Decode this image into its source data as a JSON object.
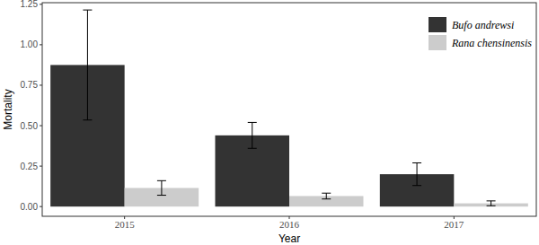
{
  "chart_data": {
    "type": "bar",
    "x_label": "Year",
    "y_label": "Mortality",
    "categories": [
      "2015",
      "2016",
      "2017"
    ],
    "series": [
      {
        "name": "Bufo andrewsi",
        "color": "#333333",
        "values": [
          0.875,
          0.44,
          0.2
        ],
        "errors": [
          0.34,
          0.08,
          0.07
        ]
      },
      {
        "name": "Rana chensinensis",
        "color": "#cccccc",
        "values": [
          0.115,
          0.065,
          0.02
        ],
        "errors": [
          0.045,
          0.018,
          0.015
        ]
      }
    ],
    "ylim": [
      -0.06,
      1.26
    ],
    "yticks": [
      {
        "value": 0,
        "label": "0.00"
      },
      {
        "value": 0.25,
        "label": "0.25"
      },
      {
        "value": 0.5,
        "label": "0.50"
      },
      {
        "value": 0.75,
        "label": "0.75"
      },
      {
        "value": 1,
        "label": "1.00"
      },
      {
        "value": 1.25,
        "label": "1.25"
      }
    ],
    "grid": false,
    "legend": "top-right"
  }
}
